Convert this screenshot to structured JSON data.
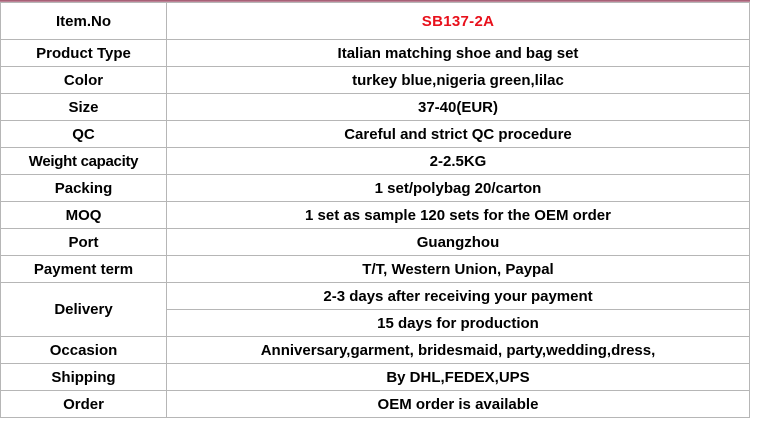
{
  "page": {
    "top_bar_color_dark": "#9e5068",
    "top_bar_color_light": "#c793a6",
    "border_color": "#b6b6b6",
    "item_no_color": "#e8111c"
  },
  "rows": [
    {
      "label": "Item.No",
      "value": "SB137-2A"
    },
    {
      "label": "Product Type",
      "value": "Italian matching shoe and bag set"
    },
    {
      "label": "Color",
      "value": "turkey blue,nigeria green,lilac"
    },
    {
      "label": "Size",
      "value": "37-40(EUR)"
    },
    {
      "label": "QC",
      "value": "Careful and strict QC procedure"
    },
    {
      "label": "Weight capacity",
      "value": "2-2.5KG"
    },
    {
      "label": "Packing",
      "value": "1 set/polybag 20/carton"
    },
    {
      "label": "MOQ",
      "value": "1 set as sample 120 sets for the OEM order"
    },
    {
      "label": "Port",
      "value": "Guangzhou"
    },
    {
      "label": "Payment term",
      "value": "T/T, Western Union, Paypal"
    },
    {
      "label": "Delivery",
      "values": [
        "2-3 days after receiving your payment",
        "15 days for production"
      ]
    },
    {
      "label": "Occasion",
      "value": "Anniversary,garment, bridesmaid, party,wedding,dress,"
    },
    {
      "label": "Shipping",
      "value": "By DHL,FEDEX,UPS"
    },
    {
      "label": "Order",
      "value": "OEM order is available"
    }
  ]
}
